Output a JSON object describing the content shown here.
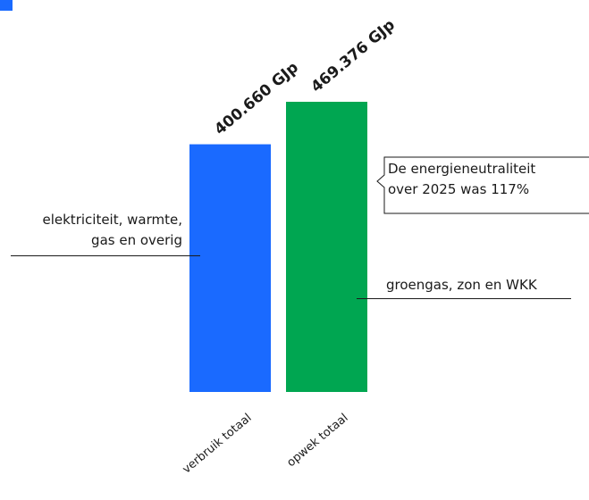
{
  "chart_data": {
    "type": "bar",
    "categories": [
      "verbruik totaal",
      "opwek totaal"
    ],
    "values": [
      400660,
      469376
    ],
    "value_labels": [
      "400.660 GJp",
      "469.376 GJp"
    ],
    "unit": "GJp",
    "colors": [
      "#1a6aff",
      "#00a651"
    ],
    "ylim": [
      0,
      469376
    ],
    "grid": false,
    "legend": "none"
  },
  "annotations": {
    "left": [
      "elektriciteit, warmte,",
      "gas en overig"
    ],
    "right": "groengas, zon en WKK",
    "callout": [
      "De energieneutraliteit",
      "over 2025 was 117%"
    ]
  }
}
